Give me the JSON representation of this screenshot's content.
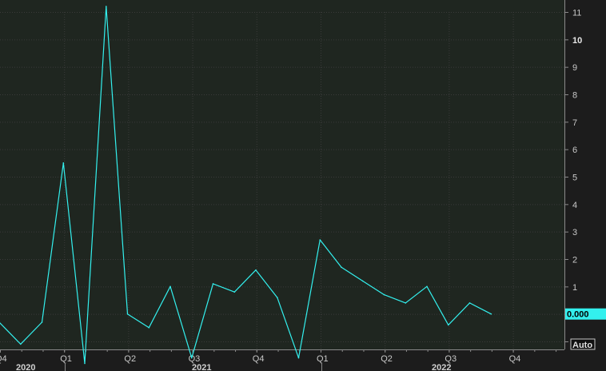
{
  "chart_data": {
    "type": "line",
    "colors": {
      "background": "#1c1c1c",
      "panel": "#1f2620",
      "line": "#33f0ee",
      "last_value_badge": "#33f0ee"
    },
    "ylim": [
      -1.7,
      11.5
    ],
    "y_ticks": [
      -1,
      1,
      2,
      3,
      4,
      5,
      6,
      7,
      8,
      9,
      10,
      11
    ],
    "bold_y_tick": 10,
    "x_quarter_labels": [
      "Q4",
      "Q1",
      "Q2",
      "Q3",
      "Q4",
      "Q1",
      "Q2",
      "Q3",
      "Q4"
    ],
    "year_labels": [
      "2020",
      "2021",
      "2022"
    ],
    "last_value_label": "0.000",
    "auto_label": "Auto",
    "grid": true,
    "series": [
      {
        "values": [
          -0.3,
          -1.1,
          -0.3,
          5.5,
          -1.8,
          11.2,
          0.0,
          -0.5,
          1.0,
          -1.6,
          1.1,
          0.8,
          1.6,
          0.6,
          -1.6,
          2.7,
          1.7,
          1.2,
          0.7,
          0.4,
          1.0,
          -0.4,
          0.4,
          0.0
        ]
      }
    ]
  }
}
